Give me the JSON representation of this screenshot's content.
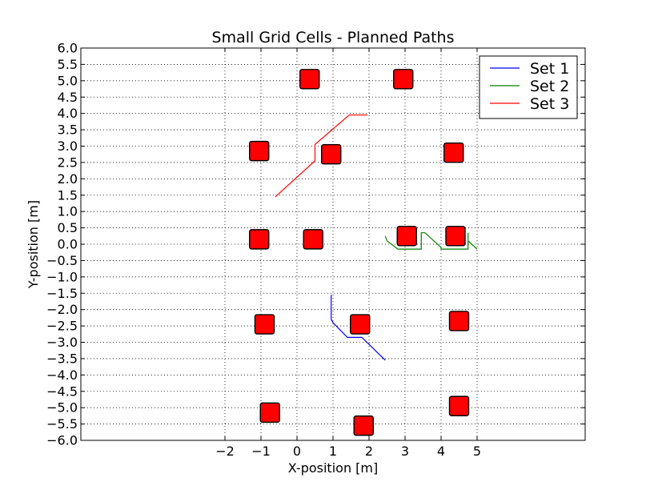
{
  "chart_data": {
    "type": "line",
    "title": "Small Grid Cells - Planned Paths",
    "xlabel": "X-position [m]",
    "ylabel": "Y-position [m]",
    "xlim": [
      -6,
      8
    ],
    "ylim": [
      -6,
      6
    ],
    "xticks": [
      -2,
      -1,
      0,
      1,
      2,
      3,
      4,
      5
    ],
    "yticks": [
      -6.0,
      -5.5,
      -5.0,
      -4.5,
      -4.0,
      -3.5,
      -3.0,
      -2.5,
      -2.0,
      -1.5,
      -1.0,
      -0.5,
      0.0,
      0.5,
      1.0,
      1.5,
      2.0,
      2.5,
      3.0,
      3.5,
      4.0,
      4.5,
      5.0,
      5.5,
      6.0
    ],
    "grid": true,
    "legend": "top-right",
    "series": [
      {
        "name": "Set 1",
        "color": "#0000ff",
        "x": [
          0.95,
          0.95,
          1.0,
          1.4,
          1.8,
          2.45
        ],
        "y": [
          -1.55,
          -2.3,
          -2.4,
          -2.85,
          -2.85,
          -3.55
        ]
      },
      {
        "name": "Set 2",
        "color": "#008000",
        "x": [
          2.45,
          2.5,
          2.8,
          3.45,
          3.45,
          3.55,
          4.0,
          4.0,
          4.75,
          4.75,
          4.75,
          5.0
        ],
        "y": [
          0.25,
          0.1,
          -0.15,
          -0.15,
          0.35,
          0.35,
          -0.1,
          -0.15,
          -0.15,
          0.35,
          0.1,
          -0.15
        ]
      },
      {
        "name": "Set 3",
        "color": "#ff0000",
        "x": [
          -0.6,
          0.5,
          0.5,
          1.45,
          1.95
        ],
        "y": [
          1.45,
          2.55,
          3.05,
          3.95,
          3.95
        ]
      }
    ],
    "obstacles": {
      "color": "#ff0000",
      "x": [
        0.35,
        2.95,
        -1.05,
        0.95,
        4.35,
        -1.05,
        0.45,
        3.05,
        4.4,
        -0.9,
        1.75,
        4.5,
        -0.75,
        1.85,
        4.5
      ],
      "y": [
        5.05,
        5.05,
        2.85,
        2.75,
        2.8,
        0.15,
        0.15,
        0.25,
        0.25,
        -2.45,
        -2.45,
        -2.35,
        -5.15,
        -5.55,
        -4.95
      ]
    }
  }
}
